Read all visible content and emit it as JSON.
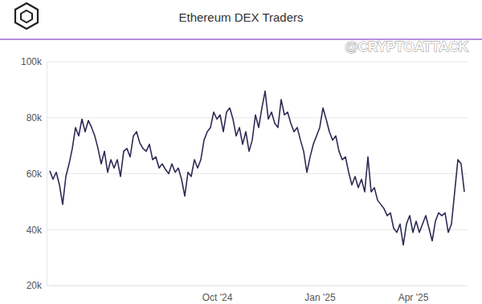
{
  "chart_data": {
    "type": "line",
    "title": "Ethereum DEX Traders",
    "annotations": [
      "@CRYPTOATTACK"
    ],
    "color": "#2d2b55",
    "grid": true,
    "ylim": [
      20000,
      100000
    ],
    "yticks": [
      {
        "value": 20000,
        "label": "20k"
      },
      {
        "value": 40000,
        "label": "40k"
      },
      {
        "value": 60000,
        "label": "60k"
      },
      {
        "value": 80000,
        "label": "80k"
      },
      {
        "value": 100000,
        "label": "100k"
      }
    ],
    "categories": [
      null,
      null,
      null,
      null,
      null,
      null,
      null,
      null,
      null,
      null,
      null,
      null,
      null,
      null,
      null,
      null,
      null,
      null,
      null,
      null,
      null,
      null,
      null,
      null,
      null,
      null,
      null,
      null,
      null,
      null,
      null,
      null,
      null,
      null,
      null,
      null,
      null,
      null,
      null,
      null,
      null,
      null,
      null,
      null,
      null,
      null,
      null,
      null,
      null,
      null,
      null,
      null,
      "Oct '24",
      null,
      null,
      null,
      null,
      null,
      null,
      null,
      null,
      null,
      null,
      null,
      null,
      null,
      null,
      null,
      null,
      null,
      null,
      null,
      null,
      null,
      null,
      null,
      null,
      null,
      null,
      null,
      null,
      null,
      null,
      null,
      "Jan '25",
      null,
      null,
      null,
      null,
      null,
      null,
      null,
      null,
      null,
      null,
      null,
      null,
      null,
      null,
      null,
      null,
      null,
      null,
      null,
      null,
      null,
      null,
      null,
      null,
      null,
      null,
      null,
      null,
      "Apr '25",
      null,
      null,
      null,
      null,
      null,
      null,
      null,
      null,
      null,
      null,
      null,
      null,
      null,
      null,
      null,
      null
    ],
    "values": [
      61000,
      58000,
      60500,
      56000,
      49000,
      59000,
      63500,
      69000,
      76500,
      73500,
      79500,
      75000,
      79000,
      76500,
      73500,
      69000,
      63500,
      68000,
      60500,
      65000,
      62000,
      65000,
      59000,
      68000,
      69000,
      66000,
      73500,
      75000,
      71000,
      69000,
      68000,
      70500,
      65000,
      66000,
      62000,
      63500,
      61500,
      60000,
      63500,
      60500,
      62000,
      58000,
      52000,
      60500,
      59000,
      65000,
      62000,
      65000,
      72000,
      75000,
      76500,
      82000,
      79500,
      81000,
      75000,
      82000,
      83500,
      79500,
      73500,
      76500,
      70500,
      75000,
      68000,
      72000,
      81000,
      76500,
      83500,
      89500,
      79500,
      82000,
      78000,
      76500,
      86500,
      81000,
      82000,
      78000,
      75000,
      76500,
      72000,
      68000,
      60500,
      66000,
      70500,
      73500,
      76500,
      83500,
      79500,
      75000,
      72000,
      73500,
      68000,
      65000,
      66000,
      60500,
      56000,
      59000,
      55000,
      58000,
      53500,
      66000,
      53500,
      55000,
      50500,
      49000,
      47500,
      45000,
      46000,
      40500,
      39000,
      42000,
      34500,
      42000,
      45000,
      39000,
      43000,
      39000,
      42000,
      45000,
      40500,
      36000,
      43000,
      46000,
      45000,
      46000,
      39000,
      42000,
      53500,
      65000,
      63500,
      53500
    ]
  }
}
